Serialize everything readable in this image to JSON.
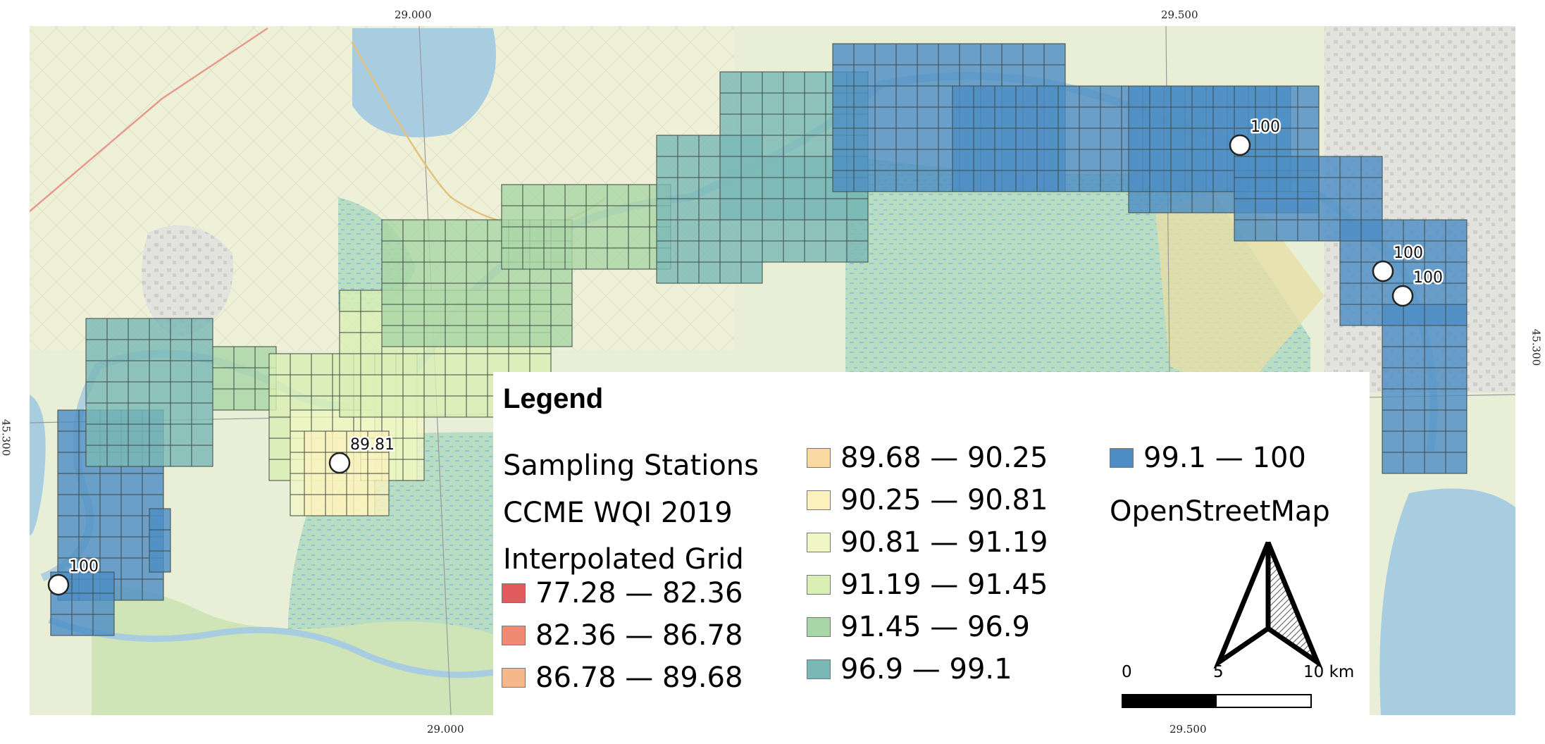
{
  "graticule": {
    "top_left": "29.000",
    "top_right": "29.500",
    "bottom_left": "29.000",
    "bottom_right": "29.500",
    "left": "45.300",
    "right": "45.300"
  },
  "stations": [
    {
      "label": "100"
    },
    {
      "label": "89.81"
    },
    {
      "label": "100"
    },
    {
      "label": "100"
    },
    {
      "label": "100"
    }
  ],
  "legend": {
    "title": "Legend",
    "sampling_stations": "Sampling Stations",
    "grid_title_line1": "CCME WQI 2019",
    "grid_title_line2": "Interpolated Grid",
    "classes": [
      {
        "label": "77.28 — 82.36",
        "color": "#e05a5e"
      },
      {
        "label": "82.36 — 86.78",
        "color": "#ee8b72"
      },
      {
        "label": "86.78 — 89.68",
        "color": "#f6b88a"
      },
      {
        "label": "89.68 — 90.25",
        "color": "#f9d9a0"
      },
      {
        "label": "90.25 — 90.81",
        "color": "#faf1bd"
      },
      {
        "label": "90.81 — 91.19",
        "color": "#f0f6c4"
      },
      {
        "label": "91.19 — 91.45",
        "color": "#d9efb4"
      },
      {
        "label": "91.45 — 96.9",
        "color": "#a9d6a6"
      },
      {
        "label": "96.9 — 99.1",
        "color": "#7ab8b6"
      },
      {
        "label": "99.1 — 100",
        "color": "#4d8dc4"
      }
    ],
    "basemap": "OpenStreetMap",
    "scale": {
      "zero": "0",
      "mid": "5",
      "end": "10 km"
    }
  },
  "colors": {
    "land": "#e9efd7",
    "lake": "#a8cde0",
    "wetland": "#b9dcc4",
    "farmland": "#f0efd6"
  }
}
